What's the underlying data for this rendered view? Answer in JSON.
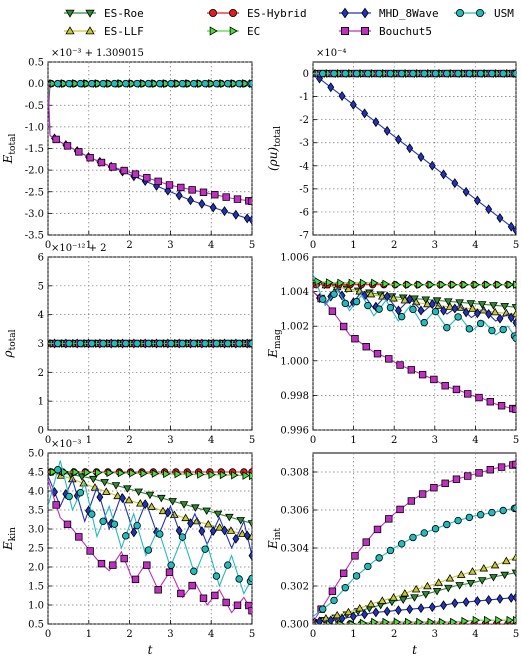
{
  "legend": [
    {
      "name": "ES-Roe",
      "color": "#2e8b2e",
      "marker": "tri-down"
    },
    {
      "name": "ES-LLF",
      "color": "#c8c832",
      "marker": "tri-up"
    },
    {
      "name": "ES-Hybrid",
      "color": "#e41a1c",
      "marker": "circle"
    },
    {
      "name": "EC",
      "color": "#4ddc3c",
      "marker": "tri-right"
    },
    {
      "name": "MHD_8Wave",
      "color": "#2233bb",
      "marker": "diamond"
    },
    {
      "name": "Bouchut5",
      "color": "#c030c0",
      "marker": "square"
    },
    {
      "name": "USM",
      "color": "#22bbbb",
      "marker": "circle"
    }
  ],
  "chart_data": [
    {
      "type": "line",
      "ylabel": "E_total",
      "offset_text": "×10⁻³ + 1.309015",
      "xlim": [
        0,
        5
      ],
      "ylim": [
        -3.5,
        0.5
      ],
      "xticks": [
        "0",
        "1",
        "2",
        "3",
        "4",
        "5"
      ],
      "yticks": [
        "0.5",
        "0.0",
        "-0.5",
        "-1.0",
        "-1.5",
        "-2.0",
        "-2.5",
        "-3.0",
        "-3.5"
      ],
      "series": [
        {
          "name": "ES-Roe",
          "x": [
            0,
            0.02,
            0.05,
            5
          ],
          "y": [
            0,
            -0.5,
            0,
            0
          ]
        },
        {
          "name": "ES-LLF",
          "x": [
            0,
            5
          ],
          "y": [
            0,
            0
          ]
        },
        {
          "name": "ES-Hybrid",
          "x": [
            0,
            5
          ],
          "y": [
            0,
            0
          ]
        },
        {
          "name": "EC",
          "x": [
            0,
            5
          ],
          "y": [
            0,
            0
          ]
        },
        {
          "name": "MHD_8Wave",
          "x": [
            0,
            0.05,
            0.3,
            0.6,
            1,
            1.5,
            2,
            2.5,
            3,
            3.5,
            4,
            4.5,
            5
          ],
          "y": [
            0,
            -1.2,
            -1.35,
            -1.5,
            -1.7,
            -1.9,
            -2.1,
            -2.3,
            -2.5,
            -2.7,
            -2.85,
            -3.0,
            -3.15
          ]
        },
        {
          "name": "Bouchut5",
          "x": [
            0,
            0.05,
            0.3,
            0.6,
            1,
            1.5,
            2,
            2.5,
            3,
            3.5,
            4,
            4.5,
            5
          ],
          "y": [
            0,
            -1.2,
            -1.35,
            -1.5,
            -1.7,
            -1.9,
            -2.05,
            -2.2,
            -2.35,
            -2.45,
            -2.55,
            -2.65,
            -2.72
          ]
        },
        {
          "name": "USM",
          "x": [
            0,
            5
          ],
          "y": [
            0,
            0
          ]
        }
      ]
    },
    {
      "type": "line",
      "ylabel": "(ρu)_total",
      "offset_text": "×10⁻⁴",
      "xlim": [
        0,
        5
      ],
      "ylim": [
        -7,
        0.5
      ],
      "xticks": [
        "0",
        "1",
        "2",
        "3",
        "4",
        "5"
      ],
      "yticks": [
        "0",
        "-1",
        "-2",
        "-3",
        "-4",
        "-5",
        "-6",
        "-7"
      ],
      "series": [
        {
          "name": "ES-Roe",
          "x": [
            0,
            5
          ],
          "y": [
            0,
            0
          ]
        },
        {
          "name": "ES-LLF",
          "x": [
            0,
            5
          ],
          "y": [
            0,
            0
          ]
        },
        {
          "name": "ES-Hybrid",
          "x": [
            0,
            5
          ],
          "y": [
            0,
            0
          ]
        },
        {
          "name": "EC",
          "x": [
            0,
            5
          ],
          "y": [
            0,
            0
          ]
        },
        {
          "name": "MHD_8Wave",
          "x": [
            0,
            5
          ],
          "y": [
            0,
            -6.8
          ]
        },
        {
          "name": "Bouchut5",
          "x": [
            0,
            5
          ],
          "y": [
            0,
            0
          ]
        },
        {
          "name": "USM",
          "x": [
            0,
            5
          ],
          "y": [
            0,
            0
          ]
        }
      ]
    },
    {
      "type": "line",
      "ylabel": "ρ_total",
      "offset_text": "×10⁻¹² + 2",
      "xlim": [
        0,
        5
      ],
      "ylim": [
        0,
        6
      ],
      "xticks": [
        "0",
        "1",
        "2",
        "3",
        "4",
        "5"
      ],
      "yticks": [
        "6",
        "5",
        "4",
        "3",
        "2",
        "1",
        "0"
      ],
      "series": [
        {
          "name": "ES-Roe",
          "x": [
            0,
            5
          ],
          "y": [
            3,
            3
          ]
        },
        {
          "name": "ES-LLF",
          "x": [
            0,
            5
          ],
          "y": [
            3,
            3
          ]
        },
        {
          "name": "ES-Hybrid",
          "x": [
            0,
            5
          ],
          "y": [
            3,
            3
          ]
        },
        {
          "name": "EC",
          "x": [
            0,
            5
          ],
          "y": [
            3,
            3
          ]
        },
        {
          "name": "MHD_8Wave",
          "x": [
            0,
            5
          ],
          "y": [
            3,
            3
          ]
        },
        {
          "name": "Bouchut5",
          "x": [
            0,
            5
          ],
          "y": [
            3,
            3
          ]
        },
        {
          "name": "USM",
          "x": [
            0,
            5
          ],
          "y": [
            3,
            3
          ]
        }
      ]
    },
    {
      "type": "line",
      "ylabel": "E_mag",
      "offset_text": "",
      "xlim": [
        0,
        5
      ],
      "ylim": [
        0.996,
        1.006
      ],
      "xticks": [
        "0",
        "1",
        "2",
        "3",
        "4",
        "5"
      ],
      "yticks": [
        "1.006",
        "1.004",
        "1.002",
        "1.000",
        "0.998",
        "0.996"
      ],
      "series": [
        {
          "name": "ES-Roe",
          "x": [
            0,
            0.5,
            1,
            1.5,
            2,
            2.5,
            3,
            3.5,
            4,
            4.5,
            5
          ],
          "y": [
            1.0045,
            1.0043,
            1.0041,
            1.0039,
            1.0037,
            1.0036,
            1.0035,
            1.0034,
            1.0033,
            1.0032,
            1.0031
          ]
        },
        {
          "name": "ES-LLF",
          "x": [
            0,
            0.5,
            1,
            1.5,
            2,
            2.5,
            3,
            3.5,
            4,
            4.5,
            5
          ],
          "y": [
            1.0045,
            1.0043,
            1.0041,
            1.0038,
            1.0036,
            1.0034,
            1.0032,
            1.0031,
            1.003,
            1.0028,
            1.0027
          ]
        },
        {
          "name": "ES-Hybrid",
          "x": [
            0,
            5
          ],
          "y": [
            1.0044,
            1.0044
          ]
        },
        {
          "name": "EC",
          "x": [
            0,
            0.5,
            1,
            1.5,
            2,
            2.5,
            3,
            3.5,
            4,
            4.5,
            5
          ],
          "y": [
            1.0046,
            1.0045,
            1.0045,
            1.0045,
            1.0044,
            1.0044,
            1.0044,
            1.0044,
            1.0044,
            1.0044,
            1.0044
          ]
        },
        {
          "name": "MHD_8Wave",
          "x": [
            0,
            0.3,
            0.6,
            0.9,
            1.2,
            1.5,
            1.8,
            2.1,
            2.4,
            2.7,
            3.0,
            3.3,
            3.6,
            3.9,
            4.2,
            4.5,
            4.8,
            5
          ],
          "y": [
            1.004,
            1.0033,
            1.0042,
            1.0031,
            1.004,
            1.003,
            1.0038,
            1.0029,
            1.0036,
            1.0028,
            1.0034,
            1.0027,
            1.0032,
            1.0025,
            1.003,
            1.0023,
            1.0027,
            1.0022
          ]
        },
        {
          "name": "Bouchut5",
          "x": [
            0,
            0.3,
            0.6,
            0.9,
            1.2,
            1.5,
            1.8,
            2.1,
            2.4,
            2.7,
            3.0,
            3.3,
            3.6,
            3.9,
            4.2,
            4.5,
            4.8,
            5
          ],
          "y": [
            1.004,
            1.0034,
            1.0025,
            1.0015,
            1.001,
            1.0005,
            1.0002,
            0.9998,
            0.9995,
            0.9992,
            0.9989,
            0.9985,
            0.9983,
            0.998,
            0.9978,
            0.9975,
            0.9973,
            0.9972
          ]
        },
        {
          "name": "USM",
          "x": [
            0,
            0.3,
            0.6,
            0.9,
            1.2,
            1.5,
            1.8,
            2.1,
            2.4,
            2.7,
            3.0,
            3.3,
            3.6,
            3.9,
            4.2,
            4.5,
            4.8,
            5
          ],
          "y": [
            1.005,
            1.0032,
            1.0041,
            1.0029,
            1.0038,
            1.0026,
            1.0035,
            1.0023,
            1.0032,
            1.0021,
            1.0029,
            1.0019,
            1.0026,
            1.0017,
            1.0023,
            1.0015,
            1.002,
            1.0013
          ]
        }
      ]
    },
    {
      "type": "line",
      "ylabel": "E_kin",
      "xlabel": "t",
      "offset_text": "×10⁻³",
      "xlim": [
        0,
        5
      ],
      "ylim": [
        0.5,
        5.0
      ],
      "xticks": [
        "0",
        "1",
        "2",
        "3",
        "4",
        "5"
      ],
      "yticks": [
        "5.0",
        "4.5",
        "4.0",
        "3.5",
        "3.0",
        "2.5",
        "2.0",
        "1.5",
        "1.0",
        "0.5"
      ],
      "series": [
        {
          "name": "ES-Roe",
          "x": [
            0,
            0.5,
            1,
            1.5,
            2,
            2.5,
            3,
            3.5,
            4,
            4.5,
            5
          ],
          "y": [
            4.5,
            4.45,
            4.35,
            4.2,
            4.05,
            3.9,
            3.75,
            3.6,
            3.45,
            3.3,
            3.15
          ]
        },
        {
          "name": "ES-LLF",
          "x": [
            0,
            0.5,
            1,
            1.5,
            2,
            2.5,
            3,
            3.5,
            4,
            4.5,
            5
          ],
          "y": [
            4.5,
            4.35,
            4.15,
            3.95,
            3.75,
            3.6,
            3.4,
            3.25,
            3.1,
            2.95,
            2.8
          ]
        },
        {
          "name": "ES-Hybrid",
          "x": [
            0,
            5
          ],
          "y": [
            4.5,
            4.5
          ]
        },
        {
          "name": "EC",
          "x": [
            0,
            0.5,
            1,
            1.5,
            2,
            2.5,
            3,
            3.5,
            4,
            4.5,
            5
          ],
          "y": [
            4.5,
            4.5,
            4.49,
            4.48,
            4.47,
            4.46,
            4.45,
            4.44,
            4.43,
            4.42,
            4.4
          ]
        },
        {
          "name": "MHD_8Wave",
          "x": [
            0,
            0.3,
            0.6,
            0.9,
            1.2,
            1.5,
            1.8,
            2.1,
            2.4,
            2.7,
            3.0,
            3.3,
            3.6,
            3.9,
            4.2,
            4.5,
            4.8,
            5
          ],
          "y": [
            4.4,
            3.6,
            4.3,
            3.2,
            4.1,
            3.0,
            3.9,
            2.9,
            3.7,
            2.8,
            3.6,
            2.7,
            3.4,
            2.6,
            3.3,
            2.5,
            3.2,
            2.3
          ]
        },
        {
          "name": "Bouchut5",
          "x": [
            0,
            0.3,
            0.6,
            0.9,
            1.2,
            1.5,
            1.8,
            2.1,
            2.4,
            2.7,
            3.0,
            3.3,
            3.6,
            3.9,
            4.2,
            4.5,
            4.8,
            5
          ],
          "y": [
            4.3,
            3.3,
            3.0,
            2.6,
            2.2,
            1.9,
            2.4,
            1.6,
            2.1,
            1.4,
            1.9,
            1.2,
            1.6,
            1.0,
            1.4,
            0.8,
            1.2,
            0.85
          ]
        },
        {
          "name": "USM",
          "x": [
            0,
            0.3,
            0.6,
            0.9,
            1.2,
            1.5,
            1.8,
            2.1,
            2.4,
            2.7,
            3.0,
            3.3,
            3.6,
            3.9,
            4.2,
            4.5,
            4.8,
            5
          ],
          "y": [
            3.6,
            4.8,
            3.5,
            4.2,
            2.8,
            3.6,
            2.5,
            3.4,
            2.3,
            3.0,
            2.0,
            2.8,
            1.8,
            2.6,
            1.5,
            2.3,
            1.3,
            1.7
          ]
        }
      ]
    },
    {
      "type": "line",
      "ylabel": "E_int",
      "xlabel": "t",
      "offset_text": "",
      "xlim": [
        0,
        5
      ],
      "ylim": [
        0.3,
        0.309
      ],
      "xticks": [
        "0",
        "1",
        "2",
        "3",
        "4",
        "5"
      ],
      "yticks": [
        "0.308",
        "0.306",
        "0.304",
        "0.302",
        "0.300"
      ],
      "series": [
        {
          "name": "ES-Roe",
          "x": [
            0,
            0.5,
            1,
            1.5,
            2,
            2.5,
            3,
            3.5,
            4,
            4.5,
            5
          ],
          "y": [
            0.3001,
            0.3003,
            0.3006,
            0.3009,
            0.3012,
            0.3014,
            0.3017,
            0.302,
            0.3022,
            0.3025,
            0.3027
          ]
        },
        {
          "name": "ES-LLF",
          "x": [
            0,
            0.5,
            1,
            1.5,
            2,
            2.5,
            3,
            3.5,
            4,
            4.5,
            5
          ],
          "y": [
            0.3001,
            0.3004,
            0.3007,
            0.3011,
            0.3014,
            0.3018,
            0.3021,
            0.3025,
            0.3028,
            0.3031,
            0.3035
          ]
        },
        {
          "name": "ES-Hybrid",
          "x": [
            0,
            5
          ],
          "y": [
            0.3,
            0.3
          ]
        },
        {
          "name": "EC",
          "x": [
            0,
            0.5,
            1,
            1.5,
            2,
            2.5,
            3,
            3.5,
            4,
            4.5,
            5
          ],
          "y": [
            0.3,
            0.3,
            0.3,
            0.3001,
            0.3001,
            0.3001,
            0.3001,
            0.3001,
            0.3002,
            0.3002,
            0.3002
          ]
        },
        {
          "name": "MHD_8Wave",
          "x": [
            0,
            0.5,
            1,
            1.5,
            2,
            2.5,
            3,
            3.5,
            4,
            4.5,
            5
          ],
          "y": [
            0.3001,
            0.3002,
            0.3004,
            0.3006,
            0.3007,
            0.3008,
            0.3009,
            0.3011,
            0.3012,
            0.3013,
            0.3014
          ]
        },
        {
          "name": "Bouchut5",
          "x": [
            0,
            0.5,
            1,
            1.5,
            2,
            2.5,
            3,
            3.5,
            4,
            4.5,
            5
          ],
          "y": [
            0.3001,
            0.3018,
            0.3035,
            0.3048,
            0.3058,
            0.3066,
            0.3072,
            0.3076,
            0.3079,
            0.3082,
            0.3084
          ]
        },
        {
          "name": "USM",
          "x": [
            0,
            0.5,
            1,
            1.5,
            2,
            2.5,
            3,
            3.5,
            4,
            4.5,
            5
          ],
          "y": [
            0.3004,
            0.3012,
            0.3024,
            0.3033,
            0.304,
            0.3046,
            0.305,
            0.3054,
            0.3057,
            0.3059,
            0.3061
          ]
        }
      ]
    }
  ]
}
